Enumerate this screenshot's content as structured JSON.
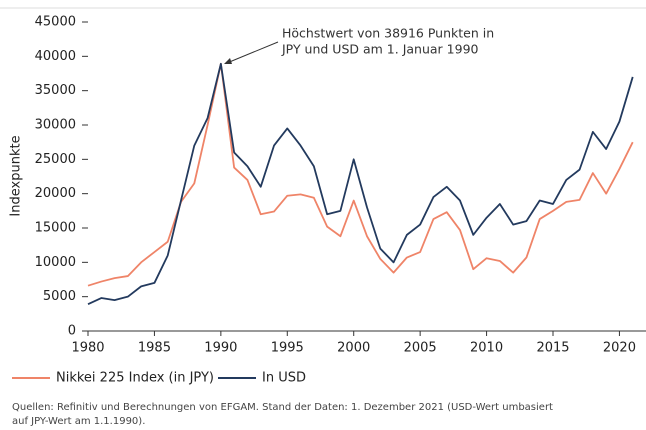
{
  "chart_data": {
    "type": "line",
    "y_label": "Indexpunkte",
    "annotation": [
      "Höchstwert von 38916 Punkten in",
      "JPY und USD am 1. Januar 1990"
    ],
    "note": [
      "Quellen: Refinitiv und Berechnungen von EFGAM. Stand der Daten: 1. Dezember 2021 (USD-Wert umbasiert",
      "auf JPY-Wert am 1.1.1990)."
    ],
    "x": [
      1980,
      1981,
      1982,
      1983,
      1984,
      1985,
      1986,
      1987,
      1988,
      1989,
      1990,
      1991,
      1992,
      1993,
      1994,
      1995,
      1996,
      1997,
      1998,
      1999,
      2000,
      2001,
      2002,
      2003,
      2004,
      2005,
      2006,
      2007,
      2008,
      2009,
      2010,
      2011,
      2012,
      2013,
      2014,
      2015,
      2016,
      2017,
      2018,
      2019,
      2020,
      2021
    ],
    "series": [
      {
        "name": "Nikkei 225 Index (in JPY)",
        "color": "#ef8468",
        "values": [
          6600,
          7200,
          7700,
          8000,
          10000,
          11500,
          13000,
          18800,
          21500,
          30000,
          38916,
          23800,
          22000,
          17000,
          17400,
          19700,
          19900,
          19400,
          15200,
          13800,
          19000,
          13800,
          10500,
          8500,
          10700,
          11500,
          16300,
          17300,
          14700,
          9000,
          10600,
          10200,
          8500,
          10700,
          16300,
          17500,
          18800,
          19100,
          23000,
          20000,
          23600,
          27500
        ]
      },
      {
        "name": "In USD",
        "color": "#233a5e",
        "values": [
          3900,
          4800,
          4500,
          5000,
          6500,
          7000,
          11000,
          19000,
          27000,
          31000,
          38916,
          26000,
          24000,
          21000,
          27000,
          29500,
          27000,
          24000,
          17000,
          17500,
          25000,
          18000,
          12000,
          10000,
          14000,
          15500,
          19500,
          21000,
          19000,
          14000,
          16500,
          18500,
          15500,
          16000,
          19000,
          18500,
          22000,
          23500,
          29000,
          26500,
          30500,
          37000
        ]
      }
    ],
    "xlim": [
      1980,
      2022
    ],
    "xticks": [
      1980,
      1985,
      1990,
      1995,
      2000,
      2005,
      2010,
      2015,
      2020
    ],
    "ylim": [
      0,
      45000
    ],
    "yticks": [
      0,
      5000,
      10000,
      15000,
      20000,
      25000,
      30000,
      35000,
      40000,
      45000
    ],
    "grid": false
  }
}
